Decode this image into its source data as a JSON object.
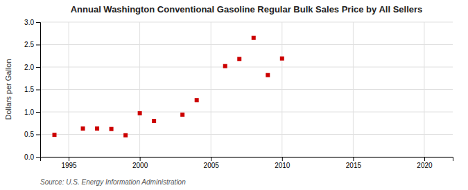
{
  "chart_data": {
    "type": "scatter",
    "title": "Annual Washington Conventional Gasoline Regular Bulk Sales Price by All Sellers",
    "ylabel": "Dollars per Gallon",
    "source": "Source: U.S. Energy Information Administration",
    "x": [
      1994,
      1996,
      1997,
      1998,
      1999,
      2000,
      2001,
      2003,
      2004,
      2006,
      2007,
      2008,
      2009,
      2010
    ],
    "values": [
      0.49,
      0.63,
      0.63,
      0.62,
      0.48,
      0.97,
      0.8,
      0.94,
      1.26,
      2.02,
      2.18,
      2.65,
      1.82,
      2.19
    ],
    "color": "#cc0000",
    "marker": "square",
    "xlim": [
      1993,
      2022
    ],
    "ylim": [
      0.0,
      3.0
    ],
    "xticks": [
      1995,
      2000,
      2005,
      2010,
      2015,
      2020
    ],
    "yticks": [
      {
        "value": 0.0,
        "label": "0.0"
      },
      0.5,
      {
        "value": 1.0,
        "label": "1.0"
      },
      1.5,
      {
        "value": 2.0,
        "label": "2.0"
      },
      2.5,
      {
        "value": 3.0,
        "label": "3.0"
      }
    ],
    "grid": true
  }
}
